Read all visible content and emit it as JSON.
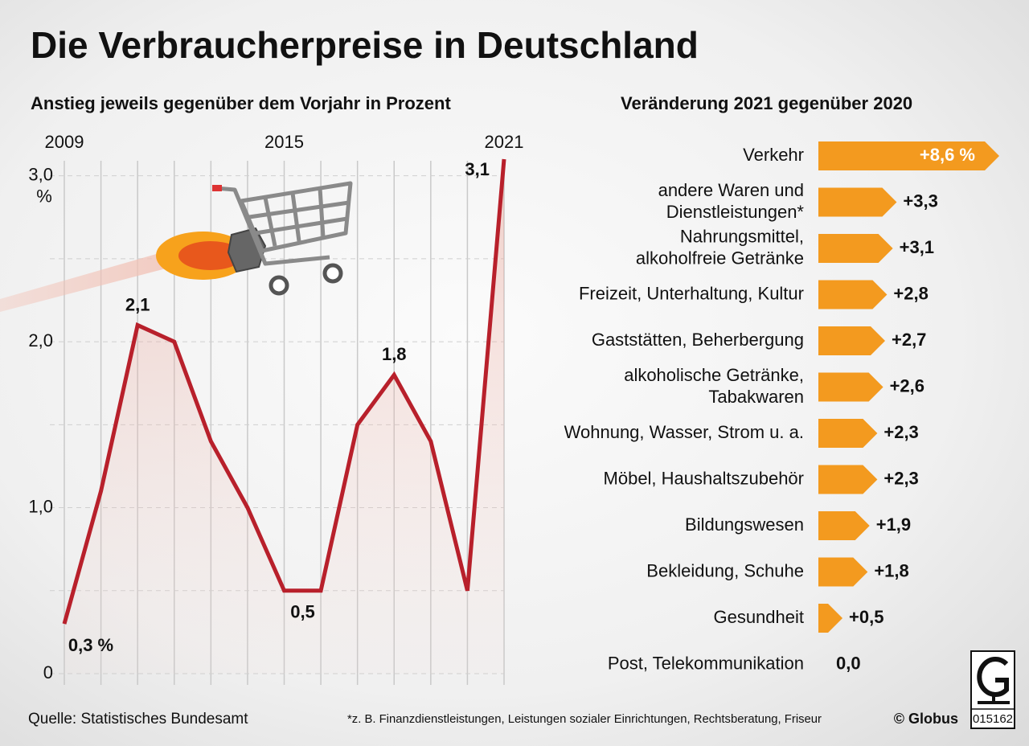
{
  "title": "Die Verbraucherpreise in Deutschland",
  "source": "Quelle: Statistisches Bundesamt",
  "footnote": "*z. B. Finanzdienstleistungen, Leistungen sozialer Einrichtungen, Rechtsberatung, Friseur",
  "copyright": "© Globus",
  "code": "015162",
  "chart_data": [
    {
      "type": "line",
      "title": "Anstieg  jeweils gegenüber dem Vorjahr in Prozent",
      "x": [
        2009,
        2010,
        2011,
        2012,
        2013,
        2014,
        2015,
        2016,
        2017,
        2018,
        2019,
        2020,
        2021
      ],
      "xlim": [
        2009,
        2021
      ],
      "xticks": [
        2009,
        2015,
        2021
      ],
      "values": [
        0.3,
        1.1,
        2.1,
        2.0,
        1.4,
        1.0,
        0.5,
        0.5,
        1.5,
        1.8,
        1.4,
        0.5,
        3.1
      ],
      "value_labels": [
        "0,3 %",
        null,
        "2,1",
        null,
        null,
        null,
        "0,5",
        null,
        null,
        "1,8",
        null,
        null,
        "3,1"
      ],
      "ylim": [
        0,
        3.1
      ],
      "yticks": [
        {
          "value": 3,
          "label": "3,0"
        },
        {
          "value": 2,
          "label": "2,0"
        },
        {
          "value": 1,
          "label": "1,0"
        },
        0
      ],
      "y_unit": "%",
      "minor_yticks": [
        0.5,
        1.5,
        2.5
      ],
      "color": "#b8202b",
      "grid": true
    },
    {
      "type": "hbar",
      "title": "Veränderung 2021 gegenüber 2020",
      "categories": [
        "Verkehr",
        "andere Waren und\nDienstleistungen*",
        "Nahrungsmittel,\nalkoholfreie Getränke",
        "Freizeit, Unterhaltung, Kultur",
        "Gaststätten, Beherbergung",
        "alkoholische Getränke,\nTabakwaren",
        "Wohnung, Wasser, Strom u. a.",
        "Möbel, Haushaltszubehör",
        "Bildungswesen",
        "Bekleidung, Schuhe",
        "Gesundheit",
        "Post, Telekommunikation"
      ],
      "values": [
        8.6,
        3.3,
        3.1,
        2.8,
        2.7,
        2.6,
        2.3,
        2.3,
        1.9,
        1.8,
        0.5,
        0.0
      ],
      "value_labels": [
        "+8,6 %",
        "+3,3",
        "+3,1",
        "+2,8",
        "+2,7",
        "+2,6",
        "+2,3",
        "+2,3",
        "+1,9",
        "+1,8",
        "+0,5",
        "0,0"
      ],
      "xlim": [
        0,
        8.6
      ],
      "color": "#f39a1f"
    }
  ]
}
